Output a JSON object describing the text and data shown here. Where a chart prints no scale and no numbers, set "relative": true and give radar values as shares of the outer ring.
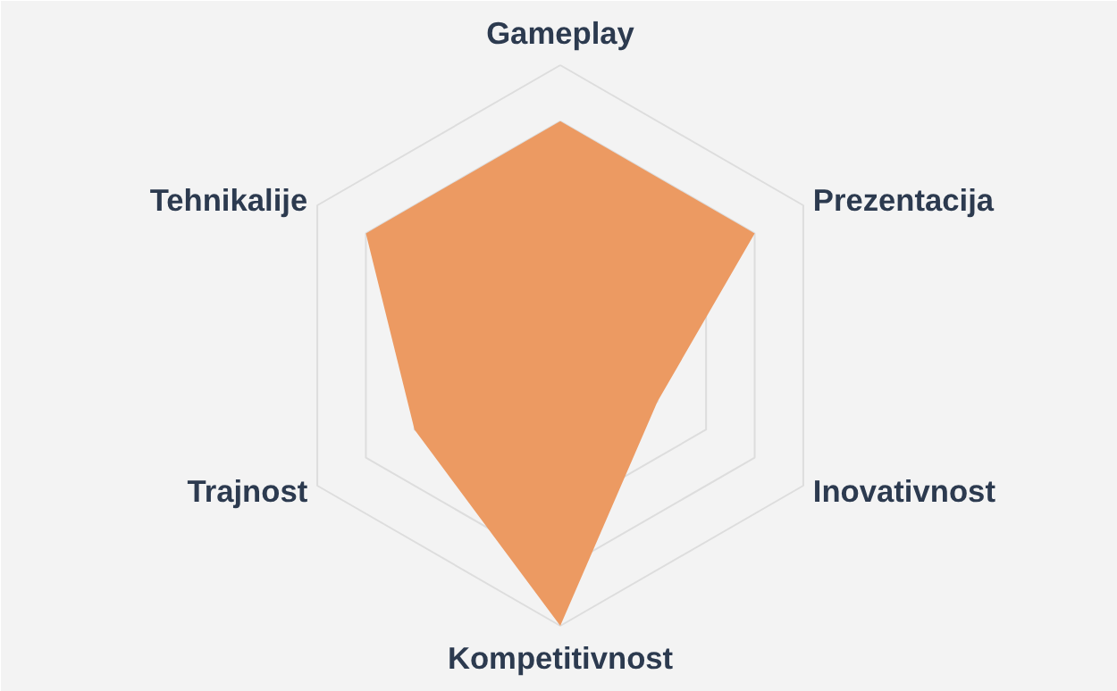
{
  "chart_data": {
    "type": "radar",
    "relative": true,
    "grid": true,
    "categories": [
      "Gameplay",
      "Prezentacija",
      "Inovativnost",
      "Kompetitivnost",
      "Trajnost",
      "Tehnikalije"
    ],
    "series": [
      {
        "color": "#ec9a62",
        "values": [
          0.8,
          0.8,
          0.4,
          1.0,
          0.6,
          0.8
        ]
      }
    ]
  }
}
